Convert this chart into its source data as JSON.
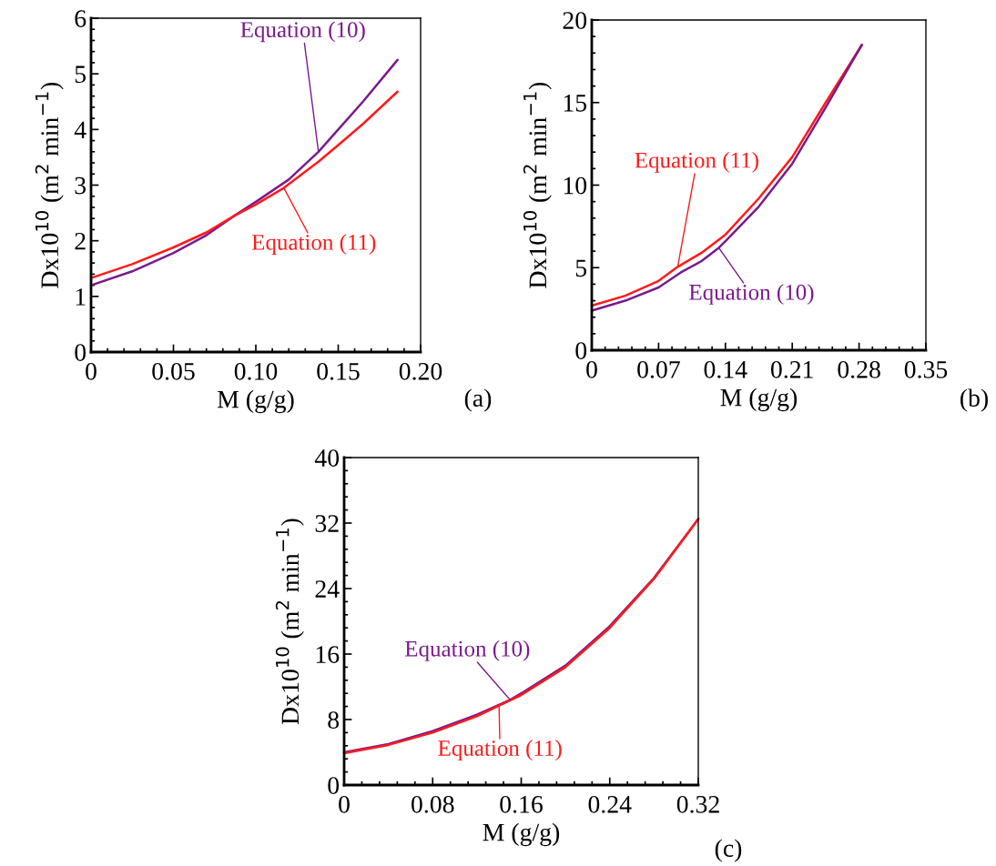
{
  "chart_data": [
    {
      "type": "line",
      "xlabel": "M (g/g)",
      "ylabel": "Dx10$^{10}$ (m$^{2}$ min$^{−1}$)",
      "xlim": [
        0,
        0.2
      ],
      "xticks": [
        {
          "value": 0,
          "label": "0"
        },
        0.05,
        {
          "value": 0.1,
          "label": "0.10"
        },
        0.15,
        {
          "value": 0.2,
          "label": "0.20"
        }
      ],
      "ylim": [
        0,
        6
      ],
      "yticks": [
        0,
        1,
        2,
        3,
        4,
        5,
        6
      ],
      "series": [
        {
          "color": "#7a1a8c",
          "x": [
            0,
            0.025,
            0.05,
            0.07,
            0.087,
            0.1,
            0.12,
            0.138,
            0.15,
            0.165,
            0.186
          ],
          "values": [
            1.2,
            1.45,
            1.78,
            2.1,
            2.45,
            2.7,
            3.1,
            3.6,
            4.0,
            4.5,
            5.25
          ]
        },
        {
          "color": "#ff1a1a",
          "x": [
            0,
            0.025,
            0.05,
            0.07,
            0.087,
            0.1,
            0.117,
            0.138,
            0.15,
            0.165,
            0.186
          ],
          "values": [
            1.33,
            1.58,
            1.88,
            2.15,
            2.45,
            2.65,
            2.95,
            3.42,
            3.72,
            4.1,
            4.68
          ]
        }
      ],
      "annotations": [
        {
          "text": "Equation (10)",
          "x": 0.138,
          "y": 3.6
        },
        {
          "text": "Equation (11)",
          "x": 0.117,
          "y": 2.95
        },
        "(a)"
      ]
    },
    {
      "type": "line",
      "xlabel": "M (g/g)",
      "ylabel": "Dx10$^{10}$ (m$^{2}$ min$^{−1}$)",
      "xlim": [
        0,
        0.35
      ],
      "xticks": [
        {
          "value": 0,
          "label": "0"
        },
        0.07,
        0.14,
        0.21,
        0.28,
        0.35
      ],
      "ylim": [
        0,
        20
      ],
      "yticks": [
        0,
        5,
        10,
        15,
        20
      ],
      "series": [
        {
          "color": "#ff1a1a",
          "x": [
            0,
            0.035,
            0.07,
            0.09,
            0.115,
            0.14,
            0.175,
            0.21,
            0.245,
            0.283
          ],
          "values": [
            2.7,
            3.3,
            4.2,
            5.05,
            5.9,
            7.0,
            9.2,
            11.7,
            15.0,
            18.5
          ]
        },
        {
          "color": "#7a1a8c",
          "x": [
            0,
            0.035,
            0.07,
            0.093,
            0.115,
            0.133,
            0.14,
            0.175,
            0.21,
            0.245,
            0.283
          ],
          "values": [
            2.4,
            3.0,
            3.8,
            4.7,
            5.4,
            6.2,
            6.6,
            8.7,
            11.3,
            14.7,
            18.5
          ]
        }
      ],
      "annotations": [
        {
          "text": "Equation (11)",
          "x": 0.09,
          "y": 5.05
        },
        {
          "text": "Equation (10)",
          "x": 0.133,
          "y": 6.2
        },
        "(b)"
      ]
    },
    {
      "type": "line",
      "xlabel": "M (g/g)",
      "ylabel": "Dx10$^{10}$ (m$^{2}$ min$^{−1}$)",
      "xlim": [
        0,
        0.32
      ],
      "xticks": [
        {
          "value": 0,
          "label": "0"
        },
        0.08,
        0.16,
        0.24,
        0.32
      ],
      "ylim": [
        0,
        40
      ],
      "yticks": [
        0,
        8,
        16,
        24,
        32,
        40
      ],
      "series": [
        {
          "color": "#7a1a8c",
          "x": [
            0,
            0.04,
            0.08,
            0.12,
            0.15,
            0.16,
            0.2,
            0.24,
            0.28,
            0.32
          ],
          "values": [
            4.0,
            5.0,
            6.6,
            8.6,
            10.4,
            11.2,
            14.6,
            19.4,
            25.3,
            32.5
          ]
        },
        {
          "color": "#ff1a1a",
          "x": [
            0,
            0.04,
            0.08,
            0.12,
            0.14,
            0.16,
            0.2,
            0.24,
            0.28,
            0.32
          ],
          "values": [
            3.9,
            4.9,
            6.4,
            8.4,
            9.7,
            11.0,
            14.4,
            19.2,
            25.2,
            32.5
          ]
        }
      ],
      "annotations": [
        {
          "text": "Equation (10)",
          "x": 0.15,
          "y": 10.4
        },
        {
          "text": "Equation (11)",
          "x": 0.14,
          "y": 9.7
        },
        "(c)"
      ]
    }
  ]
}
